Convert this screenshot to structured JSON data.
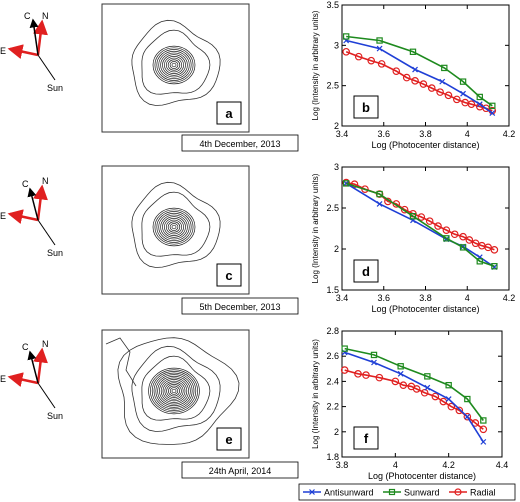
{
  "rows": [
    {
      "date": "4th December, 2013",
      "panel_left": "a",
      "panel_right": "b",
      "directions": {
        "n": "N",
        "e": "E",
        "c": "C",
        "sun": "Sun"
      }
    },
    {
      "date": "5th December, 2013",
      "panel_left": "c",
      "panel_right": "d",
      "directions": {
        "n": "N",
        "e": "E",
        "c": "C",
        "sun": "Sun"
      }
    },
    {
      "date": "24th April, 2014",
      "panel_left": "e",
      "panel_right": "f",
      "directions": {
        "n": "N",
        "e": "E",
        "c": "C",
        "sun": "Sun"
      }
    }
  ],
  "legend": {
    "entries": [
      "Antisunward",
      "Sunward",
      "Radial"
    ]
  },
  "colors": {
    "antisunward": "#1f3fd6",
    "sunward": "#1e8a1e",
    "radial": "#e02020",
    "arrow": "#e02020",
    "c_arrow": "#000000"
  },
  "chart_data": [
    {
      "type": "line",
      "xlabel": "Log (Photocenter distance)",
      "ylabel": "Log (Intensity in arbitrary units)",
      "xlim": [
        3.4,
        4.2
      ],
      "ylim": [
        2.0,
        3.5
      ],
      "xticks": [
        "3.4",
        "3.6",
        "3.8",
        "4",
        "4.2"
      ],
      "yticks": [
        "2",
        "2.5",
        "3",
        "3.5"
      ],
      "series": [
        {
          "name": "Antisunward",
          "x": [
            3.42,
            3.58,
            3.75,
            3.88,
            3.98,
            4.06,
            4.12
          ],
          "y": [
            3.06,
            2.96,
            2.7,
            2.55,
            2.4,
            2.27,
            2.16
          ]
        },
        {
          "name": "Sunward",
          "x": [
            3.42,
            3.58,
            3.74,
            3.89,
            3.98,
            4.06,
            4.12
          ],
          "y": [
            3.11,
            3.06,
            2.92,
            2.72,
            2.55,
            2.36,
            2.25
          ]
        },
        {
          "name": "Radial",
          "x": [
            3.42,
            3.48,
            3.54,
            3.59,
            3.66,
            3.71,
            3.75,
            3.79,
            3.83,
            3.87,
            3.91,
            3.95,
            3.99,
            4.02,
            4.06,
            4.09,
            4.12
          ],
          "y": [
            2.92,
            2.86,
            2.81,
            2.77,
            2.68,
            2.6,
            2.56,
            2.52,
            2.47,
            2.42,
            2.38,
            2.33,
            2.29,
            2.27,
            2.24,
            2.22,
            2.19
          ]
        }
      ]
    },
    {
      "type": "line",
      "xlabel": "Log (Photocenter distance)",
      "ylabel": "Log (Intensity in arbitrary units)",
      "xlim": [
        3.4,
        4.2
      ],
      "ylim": [
        1.5,
        3.0
      ],
      "xticks": [
        "3.4",
        "3.6",
        "3.8",
        "4",
        "4.2"
      ],
      "yticks": [
        "1.5",
        "2",
        "2.5",
        "3"
      ],
      "series": [
        {
          "name": "Antisunward",
          "x": [
            3.42,
            3.58,
            3.74,
            3.9,
            3.98,
            4.06,
            4.13
          ],
          "y": [
            2.8,
            2.55,
            2.35,
            2.12,
            2.03,
            1.9,
            1.78
          ]
        },
        {
          "name": "Sunward",
          "x": [
            3.42,
            3.58,
            3.74,
            3.9,
            3.98,
            4.06,
            4.13
          ],
          "y": [
            2.8,
            2.67,
            2.4,
            2.13,
            2.02,
            1.85,
            1.79
          ]
        },
        {
          "name": "Radial",
          "x": [
            3.42,
            3.46,
            3.51,
            3.58,
            3.62,
            3.66,
            3.7,
            3.74,
            3.78,
            3.82,
            3.86,
            3.9,
            3.94,
            3.98,
            4.01,
            4.04,
            4.07,
            4.1,
            4.13
          ],
          "y": [
            2.81,
            2.79,
            2.73,
            2.67,
            2.58,
            2.55,
            2.48,
            2.43,
            2.39,
            2.34,
            2.28,
            2.23,
            2.18,
            2.15,
            2.11,
            2.07,
            2.04,
            2.02,
            1.99
          ]
        }
      ]
    },
    {
      "type": "line",
      "xlabel": "Log (Photocenter distance)",
      "ylabel": "Log (Intensity in arbitrary units)",
      "xlim": [
        3.8,
        4.4
      ],
      "ylim": [
        1.8,
        2.8
      ],
      "xticks": [
        "3.8",
        "4",
        "4.2",
        "4.4"
      ],
      "yticks": [
        "1.8",
        "2",
        "2.2",
        "2.4",
        "2.6",
        "2.8"
      ],
      "series": [
        {
          "name": "Antisunward",
          "x": [
            3.81,
            3.92,
            4.02,
            4.12,
            4.2,
            4.27,
            4.33
          ],
          "y": [
            2.63,
            2.55,
            2.46,
            2.35,
            2.26,
            2.12,
            1.92
          ]
        },
        {
          "name": "Sunward",
          "x": [
            3.81,
            3.92,
            4.02,
            4.12,
            4.2,
            4.27,
            4.33
          ],
          "y": [
            2.66,
            2.61,
            2.52,
            2.44,
            2.37,
            2.26,
            2.09
          ]
        },
        {
          "name": "Radial",
          "x": [
            3.81,
            3.86,
            3.89,
            3.94,
            4.0,
            4.03,
            4.06,
            4.08,
            4.11,
            4.15,
            4.18,
            4.21,
            4.24,
            4.27,
            4.3,
            4.33
          ],
          "y": [
            2.49,
            2.46,
            2.45,
            2.43,
            2.4,
            2.37,
            2.36,
            2.34,
            2.31,
            2.28,
            2.24,
            2.2,
            2.17,
            2.12,
            2.07,
            2.02
          ]
        }
      ]
    }
  ]
}
